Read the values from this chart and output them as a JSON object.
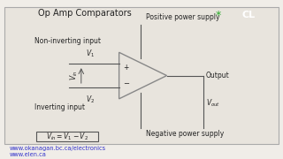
{
  "title": "Op Amp Comparators",
  "bg_color": "#f0ede8",
  "slide_bg": "#e8e4dd",
  "border_color": "#999999",
  "triangle_color": "#888888",
  "line_color": "#555555",
  "text_color": "#222222",
  "link_color": "#3333cc",
  "logo_green": "#2aaa2a",
  "logo_bg": "#1a1a6a",
  "url1": "www.okanagan.bc.ca/electronics",
  "url2": "www.elen.ca",
  "labels": {
    "pos_supply": "Positive power supply",
    "neg_supply": "Negative power supply",
    "non_inv": "Non-inverting input",
    "inv": "Inverting input",
    "output": "Output"
  }
}
